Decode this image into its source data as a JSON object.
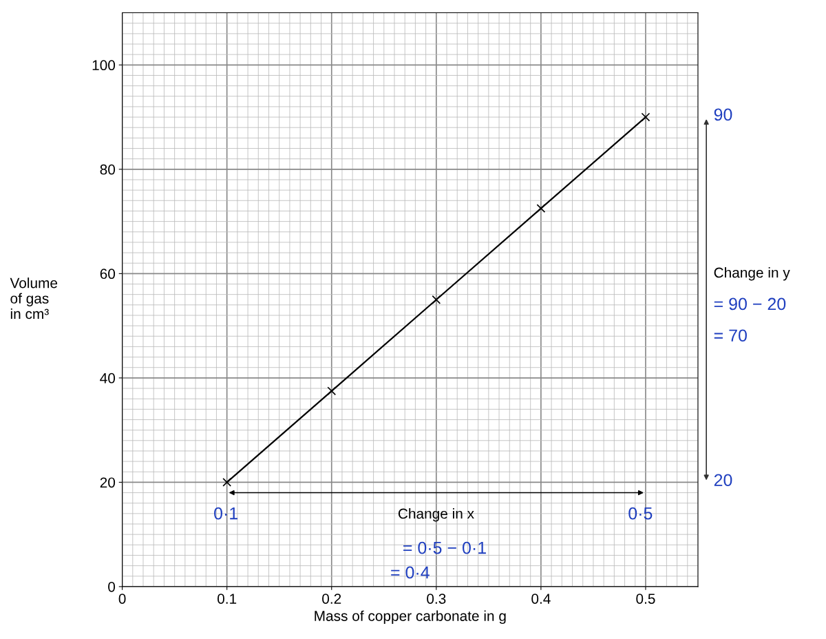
{
  "chart_data": {
    "type": "line",
    "xlabel": "Mass of copper carbonate in g",
    "ylabel": "Volume\nof gas\nin cm³",
    "x": [
      0.1,
      0.2,
      0.3,
      0.4,
      0.5
    ],
    "series": [
      {
        "color": "#000000",
        "values": [
          20,
          37.5,
          55,
          72.5,
          90
        ]
      }
    ],
    "marker": "cross",
    "line_style": "solid",
    "grid": true,
    "xlim": [
      0,
      0.55
    ],
    "ylim": [
      0,
      110
    ],
    "xticks": [
      0,
      0.1,
      0.2,
      0.3,
      0.4,
      0.5
    ],
    "yticks": [
      0,
      20,
      40,
      60,
      80,
      100
    ],
    "annotations": [
      "0·1",
      "0·5",
      "Change in x",
      "= 0·5 − 0·1",
      "= 0·4",
      "90",
      "20",
      "Change in y",
      "= 90 − 20",
      "= 70"
    ]
  }
}
